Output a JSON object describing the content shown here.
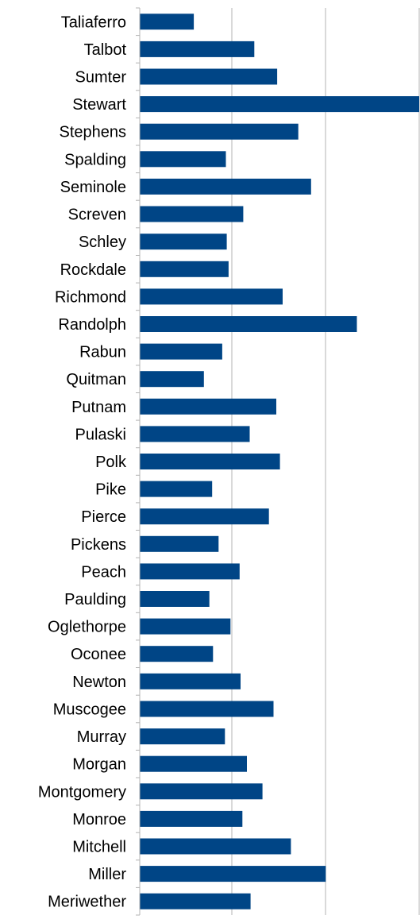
{
  "chart_data": {
    "type": "bar",
    "orientation": "horizontal",
    "categories": [
      "Taliaferro",
      "Talbot",
      "Sumter",
      "Stewart",
      "Stephens",
      "Spalding",
      "Seminole",
      "Screven",
      "Schley",
      "Rockdale",
      "Richmond",
      "Randolph",
      "Rabun",
      "Quitman",
      "Putnam",
      "Pulaski",
      "Polk",
      "Pike",
      "Pierce",
      "Pickens",
      "Peach",
      "Paulding",
      "Oglethorpe",
      "Oconee",
      "Newton",
      "Muscogee",
      "Murray",
      "Morgan",
      "Montgomery",
      "Monroe",
      "Mitchell",
      "Miller",
      "Meriwether"
    ],
    "values": [
      5.9,
      12.5,
      15.0,
      30.5,
      17.3,
      9.4,
      18.7,
      11.3,
      9.5,
      9.7,
      15.6,
      23.7,
      9.0,
      7.0,
      14.9,
      12.0,
      15.3,
      7.9,
      14.1,
      8.6,
      10.9,
      7.6,
      9.9,
      8.0,
      11.0,
      14.6,
      9.3,
      11.7,
      13.4,
      11.2,
      16.5,
      20.3,
      12.1
    ],
    "xlim": [
      0,
      30.5
    ],
    "grid": true,
    "bar_color": "#004586",
    "title": "",
    "xlabel": "",
    "ylabel": ""
  }
}
